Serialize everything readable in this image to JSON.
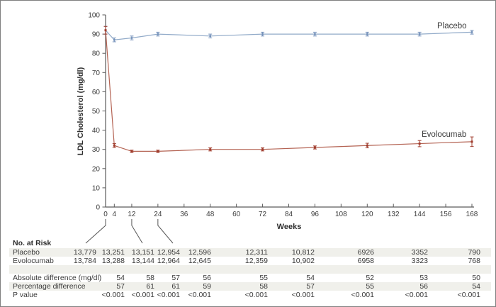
{
  "figure": {
    "border_color": "#7f7f7f",
    "background": "#ffffff",
    "text_color": "#3a3a3a",
    "axis_color": "#5a5a5a",
    "row_band_color": "#f0f0eb"
  },
  "chart_data": {
    "type": "line",
    "title": "",
    "xlabel": "Weeks",
    "ylabel": "LDL Cholesterol (mg/dl)",
    "ylim": [
      0,
      100
    ],
    "yticks": [
      0,
      10,
      20,
      30,
      40,
      50,
      60,
      70,
      80,
      90,
      100
    ],
    "xticks": [
      0,
      4,
      12,
      24,
      36,
      48,
      60,
      72,
      84,
      96,
      108,
      120,
      132,
      144,
      156,
      168
    ],
    "x": [
      0,
      4,
      12,
      24,
      48,
      72,
      96,
      120,
      144,
      168
    ],
    "grid": "off",
    "legend_position": "inline-right-of-lines",
    "error_bars": true,
    "series": [
      {
        "name": "Placebo",
        "values": [
          92,
          87,
          88,
          90,
          89,
          90,
          90,
          90,
          90,
          91
        ],
        "err": [
          2,
          1,
          1,
          1,
          1,
          1,
          1,
          1,
          1,
          1
        ],
        "line_color": "#92abc9",
        "marker_color": "#7491ba"
      },
      {
        "name": "Evolocumab",
        "values": [
          92,
          32,
          29,
          29,
          30,
          30,
          31,
          32,
          33,
          34
        ],
        "err": [
          2,
          1,
          0.6,
          0.6,
          0.8,
          0.8,
          0.8,
          1.2,
          1.6,
          2.5
        ],
        "line_color": "#b46353",
        "marker_color": "#a03c2d"
      }
    ]
  },
  "risk_table": {
    "header": "No. at Risk",
    "rows": [
      {
        "label": "Placebo",
        "values": [
          "13,779",
          "13,251",
          "13,151",
          "12,954",
          "12,596",
          "12,311",
          "10,812",
          "6926",
          "3352",
          "790"
        ]
      },
      {
        "label": "Evolocumab",
        "values": [
          "13,784",
          "13,288",
          "13,144",
          "12,964",
          "12,645",
          "12,359",
          "10,902",
          "6958",
          "3323",
          "768"
        ]
      }
    ],
    "stats_rows": [
      {
        "label": "Absolute difference (mg/dl)",
        "values": [
          "",
          "54",
          "58",
          "57",
          "56",
          "55",
          "54",
          "52",
          "53",
          "50"
        ]
      },
      {
        "label": "Percentage difference",
        "values": [
          "",
          "57",
          "61",
          "61",
          "59",
          "58",
          "57",
          "55",
          "56",
          "54"
        ]
      },
      {
        "label": "P value",
        "values": [
          "",
          "<0.001",
          "<0.001",
          "<0.001",
          "<0.001",
          "<0.001",
          "<0.001",
          "<0.001",
          "<0.001",
          "<0.001"
        ]
      }
    ]
  }
}
